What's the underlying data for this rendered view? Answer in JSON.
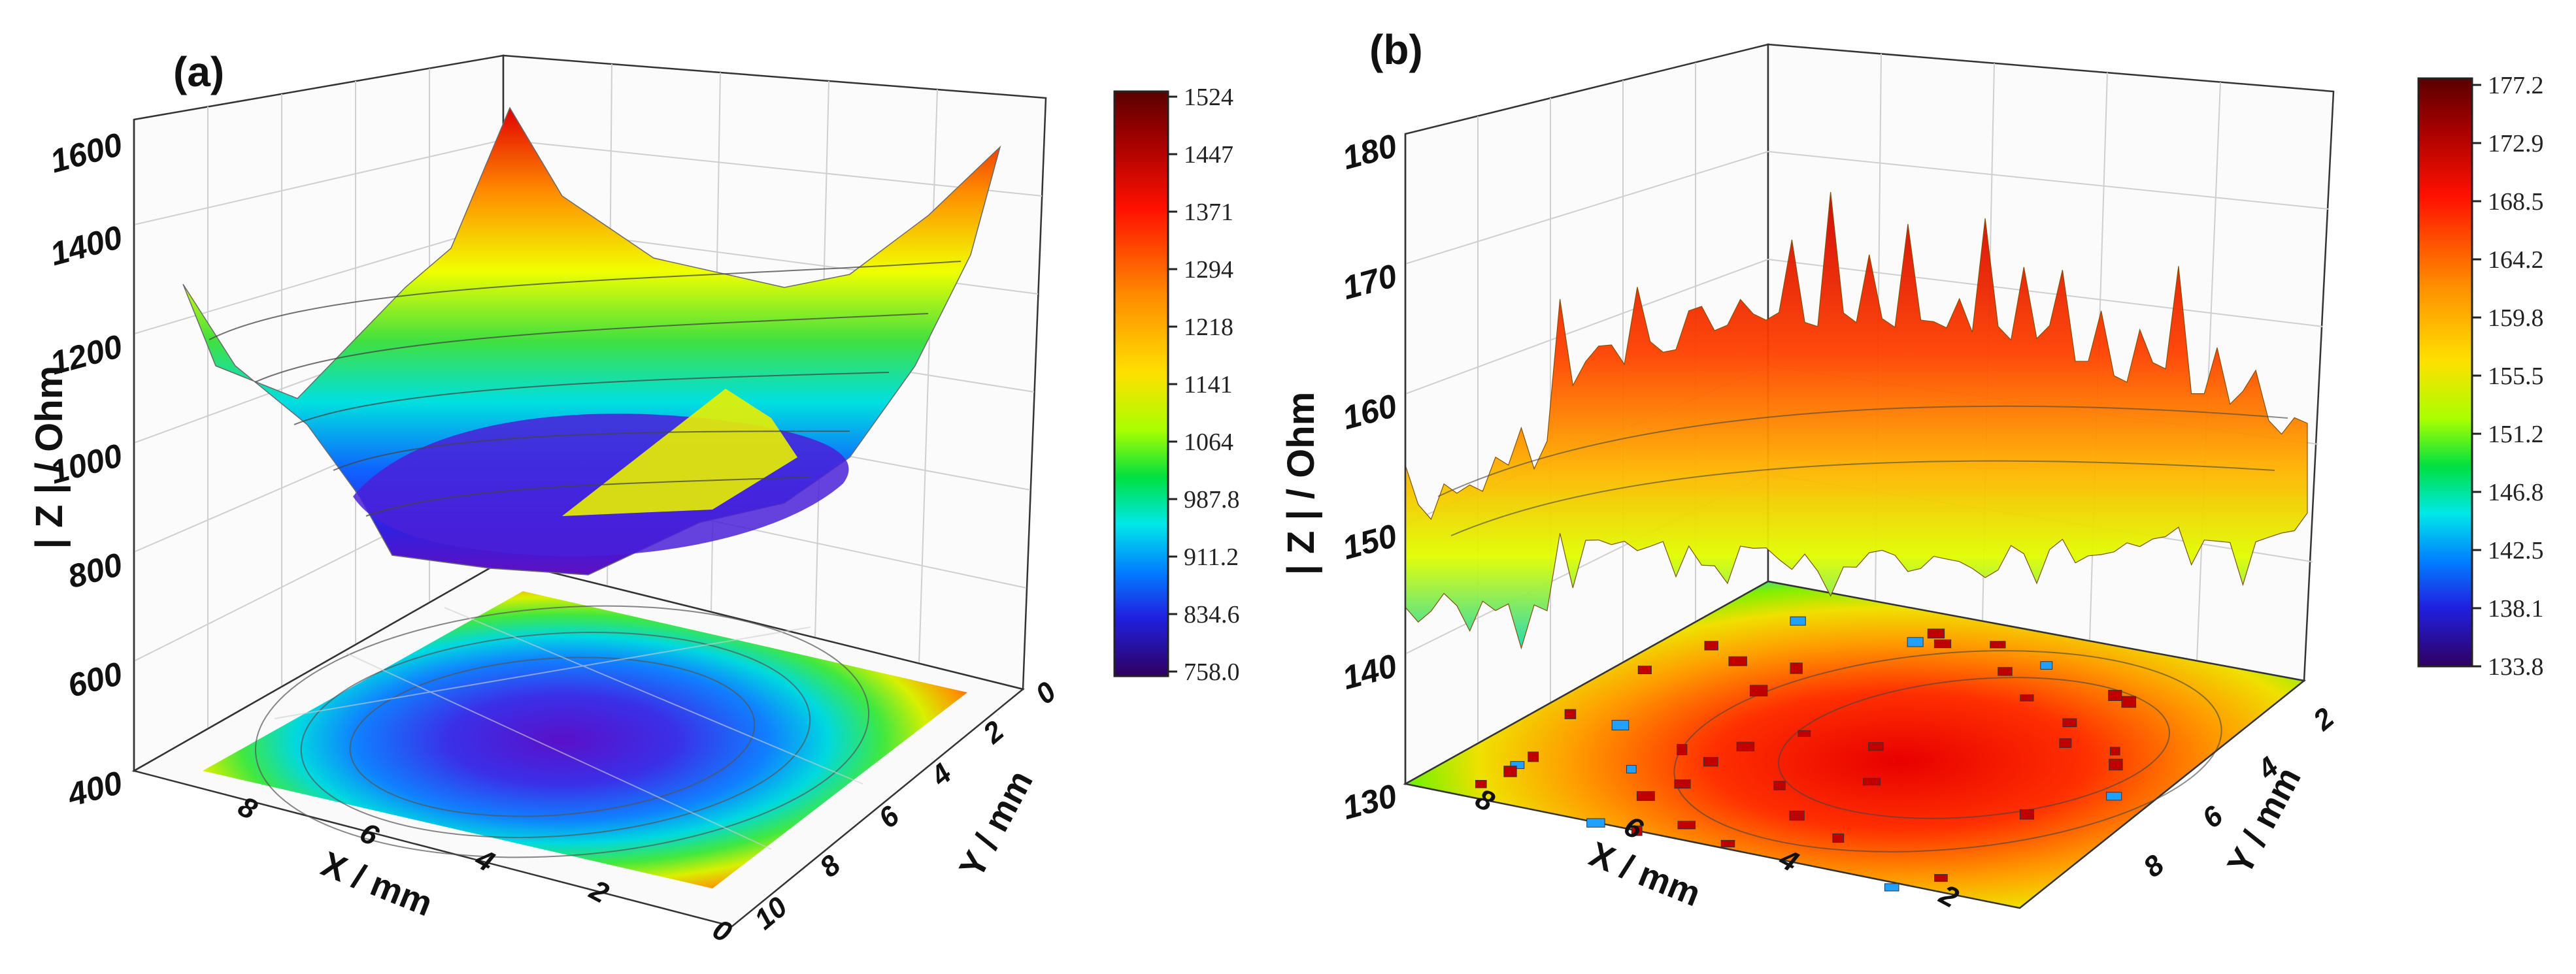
{
  "chart_data": [
    {
      "type": "surface3d",
      "panel_label": "(a)",
      "zlabel": "| Z | / Ohm",
      "xlabel": "X / mm",
      "ylabel": "Y / mm",
      "z_ticks": [
        "400",
        "600",
        "800",
        "1000",
        "1200",
        "1400",
        "1600"
      ],
      "x_ticks": [
        "8",
        "6",
        "4",
        "2",
        "0"
      ],
      "y_ticks": [
        "0",
        "2",
        "4",
        "6",
        "8",
        "10"
      ],
      "zlim": [
        400,
        1600
      ],
      "xlim": [
        0,
        10
      ],
      "ylim": [
        0,
        10
      ],
      "colorbar": {
        "min": 758.0,
        "max": 1524,
        "labels": [
          "1524",
          "1447",
          "1371",
          "1294",
          "1218",
          "1141",
          "1064",
          "987.8",
          "911.2",
          "834.6",
          "758.0"
        ]
      },
      "surface": "bowl-shaped impedance map, minimum ≈ 800 Ohm at center, rising to ≈ 1500 Ohm at corners",
      "projection": "filled contour map on base plane"
    },
    {
      "type": "surface3d",
      "panel_label": "(b)",
      "zlabel": "| Z | / Ohm",
      "xlabel": "X / mm",
      "ylabel": "Y / mm",
      "z_ticks": [
        "130",
        "140",
        "150",
        "160",
        "170",
        "180"
      ],
      "x_ticks": [
        "8",
        "6",
        "4",
        "2"
      ],
      "y_ticks": [
        "2",
        "4",
        "6",
        "8"
      ],
      "zlim": [
        130,
        180
      ],
      "xlim": [
        0,
        10
      ],
      "ylim": [
        0,
        10
      ],
      "colorbar": {
        "min": 133.8,
        "max": 177.2,
        "labels": [
          "177.2",
          "172.9",
          "168.5",
          "164.2",
          "159.8",
          "155.5",
          "151.2",
          "146.8",
          "142.5",
          "138.1",
          "133.8"
        ]
      },
      "surface": "noisy spiky impedance map, mostly 155–170 Ohm with spikes to ≈ 177 Ohm",
      "projection": "filled contour map on base plane"
    }
  ],
  "colors": {
    "scale": [
      "#5a0000",
      "#a00000",
      "#e00000",
      "#ff3000",
      "#ff8c00",
      "#ffd000",
      "#f0ff00",
      "#90ff00",
      "#00e040",
      "#00e0e0",
      "#0090ff",
      "#1020e0",
      "#5a00c0",
      "#3a0060"
    ]
  }
}
